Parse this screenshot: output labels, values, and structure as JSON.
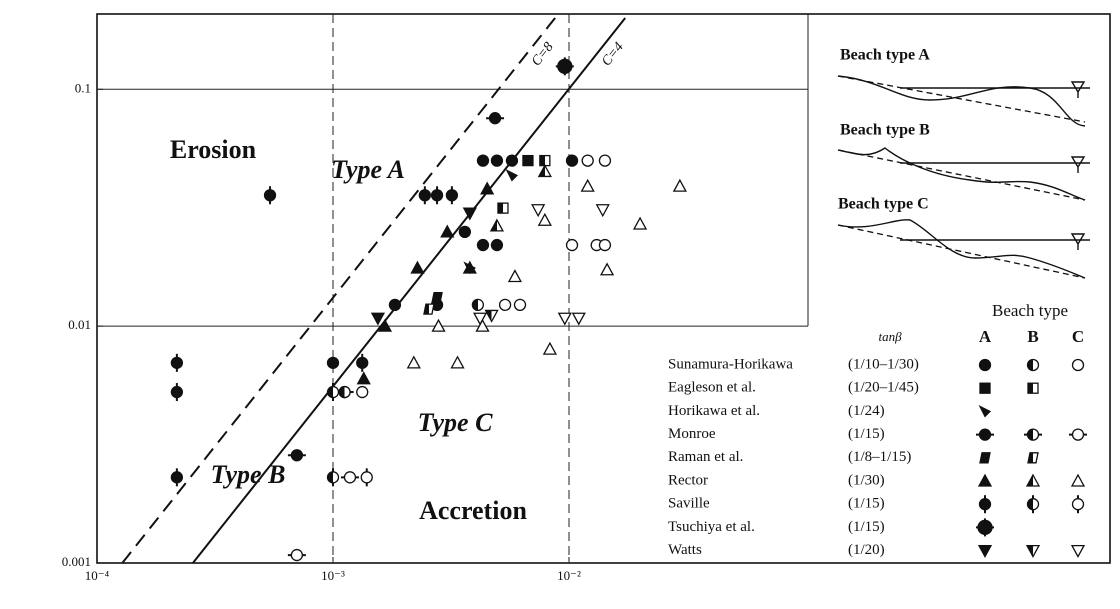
{
  "chart_data": {
    "type": "scatter",
    "log_x": true,
    "log_y": true,
    "xlim": [
      0.0001,
      0.1
    ],
    "ylim": [
      0.001,
      0.2
    ],
    "xticks": [
      {
        "value": 0.0001,
        "label": "10⁻⁴"
      },
      {
        "value": 0.001,
        "label": "10⁻³"
      },
      {
        "value": 0.01,
        "label": "10⁻²"
      }
    ],
    "yticks": [
      0.001,
      0.01,
      0.1
    ],
    "grid": true,
    "annotations": [
      "Erosion",
      "Type A",
      "Type B",
      "Type C",
      "Accretion"
    ],
    "lines": [
      {
        "name": "C=8",
        "style": "dashed",
        "x": [
          0.000128,
          0.00873
        ],
        "values": [
          0.001,
          0.2
        ]
      },
      {
        "name": "C=4",
        "style": "solid",
        "x": [
          0.000255,
          0.0173
        ],
        "values": [
          0.001,
          0.2
        ]
      }
    ],
    "insets": [
      "Beach type A",
      "Beach type B",
      "Beach type C"
    ],
    "legend": {
      "title": "Beach type",
      "slope_header": "tanβ",
      "type_headers": [
        "A",
        "B",
        "C"
      ]
    },
    "series": [
      {
        "name": "Sunamura-Horikawa",
        "tan_beta": "(1/10–1/30)",
        "marker": "circle",
        "points": {
          "A": {
            "x": [
              0.00432,
              0.00495,
              0.00573,
              0.0103,
              0.00362,
              0.00432,
              0.00495,
              0.00183,
              0.00276,
              0.001
            ],
            "values": [
              0.05,
              0.05,
              0.05,
              0.05,
              0.025,
              0.022,
              0.022,
              0.0123,
              0.0123,
              0.007
            ]
          },
          "B": {
            "x": [
              0.00411,
              0.00112
            ],
            "values": [
              0.0123,
              0.00527
            ]
          },
          "C": {
            "x": [
              0.012,
              0.0142,
              0.0103,
              0.0131,
              0.0142,
              0.00536,
              0.0062,
              0.00133
            ],
            "values": [
              0.05,
              0.05,
              0.022,
              0.022,
              0.022,
              0.0123,
              0.0123,
              0.00527
            ]
          }
        }
      },
      {
        "name": "Eagleson et al.",
        "tan_beta": "(1/20–1/45)",
        "marker": "square",
        "points": {
          "A": {
            "x": [
              0.0067
            ],
            "values": [
              0.05
            ]
          },
          "B": {
            "x": [
              0.0079,
              0.00525
            ],
            "values": [
              0.05,
              0.0315
            ]
          }
        }
      },
      {
        "name": "Horikawa et al.",
        "tan_beta": "(1/24)",
        "marker": "wedge",
        "points": {
          "A": {
            "x": [
              0.00573,
              0.0038
            ],
            "values": [
              0.0433,
              0.0176
            ]
          }
        }
      },
      {
        "name": "Monroe",
        "tan_beta": "(1/15)",
        "marker": "circle-hbar",
        "points": {
          "A": {
            "x": [
              0.000703,
              0.00486
            ],
            "values": [
              0.00285,
              0.0755
            ]
          },
          "B": {
            "x": [
              0.00112
            ],
            "values": [
              0.00527
            ]
          },
          "C": {
            "x": [
              0.000703,
              0.00118
            ],
            "values": [
              0.00108,
              0.0023
            ]
          }
        }
      },
      {
        "name": "Raman et al.",
        "tan_beta": "(1/8–1/15)",
        "marker": "skew",
        "points": {
          "A": {
            "x": [
              0.00276
            ],
            "values": [
              0.0132
            ]
          },
          "B": {
            "x": [
              0.00255
            ],
            "values": [
              0.0118
            ]
          }
        }
      },
      {
        "name": "Rector",
        "tan_beta": "(1/30)",
        "marker": "triangle",
        "points": {
          "A": {
            "x": [
              0.0045,
              0.00305,
              0.00228,
              0.00166,
              0.00135,
              0.0038
            ],
            "values": [
              0.038,
              0.025,
              0.0176,
              0.01,
              0.006,
              0.0176
            ]
          },
          "B": {
            "x": [
              0.00495,
              0.0079
            ],
            "values": [
              0.0265,
              0.045
            ]
          },
          "C": {
            "x": [
              0.012,
              0.0295,
              0.02,
              0.0145,
              0.0059,
              0.0028,
              0.0022,
              0.00337,
              0.0043,
              0.0083,
              0.0079
            ],
            "values": [
              0.039,
              0.039,
              0.027,
              0.0173,
              0.0162,
              0.01,
              0.007,
              0.007,
              0.01,
              0.008,
              0.028
            ]
          }
        }
      },
      {
        "name": "Saville",
        "tan_beta": "(1/15)",
        "marker": "circle-vbar",
        "points": {
          "A": {
            "x": [
              0.000218,
              0.000218,
              0.000218,
              0.000541,
              0.00245,
              0.00276,
              0.00319,
              0.00133
            ],
            "values": [
              0.007,
              0.00527,
              0.0023,
              0.0357,
              0.0357,
              0.0357,
              0.0357,
              0.007
            ]
          },
          "B": {
            "x": [
              0.001,
              0.001
            ],
            "values": [
              0.00527,
              0.0023
            ]
          },
          "C": {
            "x": [
              0.00139
            ],
            "values": [
              0.0023
            ]
          }
        }
      },
      {
        "name": "Tsuchiya et al.",
        "tan_beta": "(1/15)",
        "marker": "circle-cross",
        "points": {
          "A": {
            "x": [
              0.0096
            ],
            "values": [
              0.125
            ]
          }
        }
      },
      {
        "name": "Watts",
        "tan_beta": "(1/20)",
        "marker": "triangle-down",
        "points": {
          "A": {
            "x": [
              0.0038,
              0.00155
            ],
            "values": [
              0.03,
              0.0108
            ]
          },
          "B": {
            "x": [
              0.0047
            ],
            "values": [
              0.0111
            ]
          },
          "C": {
            "x": [
              0.0074,
              0.0139,
              0.0096,
              0.011,
              0.0042
            ],
            "values": [
              0.031,
              0.031,
              0.0108,
              0.0108,
              0.0108
            ]
          }
        }
      }
    ]
  }
}
